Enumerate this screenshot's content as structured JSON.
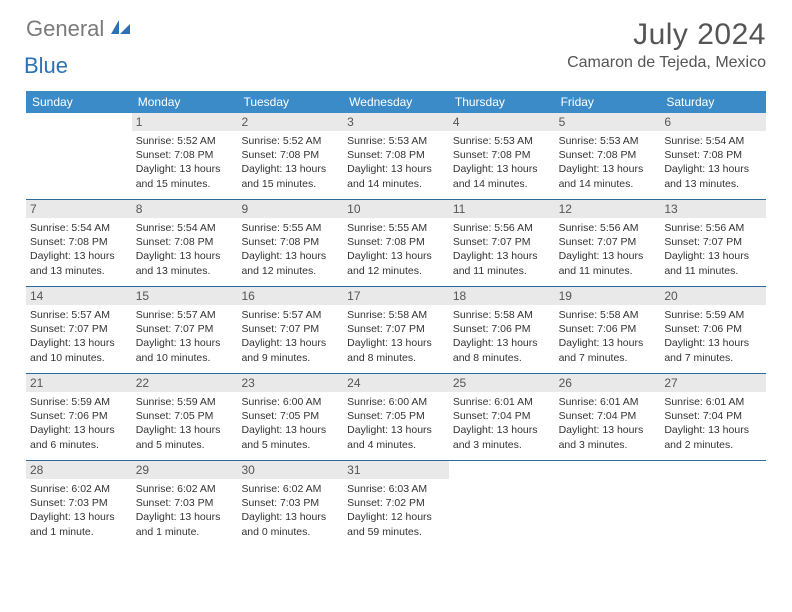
{
  "logo": {
    "general": "General",
    "blue": "Blue"
  },
  "title": "July 2024",
  "location": "Camaron de Tejeda, Mexico",
  "colors": {
    "header_bg": "#3b8bc8",
    "header_text": "#ffffff",
    "daynum_bg": "#e9e9e9",
    "daynum_text": "#555555",
    "divider": "#2a6a9e",
    "body_text": "#333333",
    "title_text": "#555555",
    "logo_gray": "#7a7a7a",
    "logo_blue": "#2a72b5"
  },
  "day_names": [
    "Sunday",
    "Monday",
    "Tuesday",
    "Wednesday",
    "Thursday",
    "Friday",
    "Saturday"
  ],
  "weeks": [
    [
      null,
      {
        "n": "1",
        "sr": "5:52 AM",
        "ss": "7:08 PM",
        "dl": "13 hours and 15 minutes."
      },
      {
        "n": "2",
        "sr": "5:52 AM",
        "ss": "7:08 PM",
        "dl": "13 hours and 15 minutes."
      },
      {
        "n": "3",
        "sr": "5:53 AM",
        "ss": "7:08 PM",
        "dl": "13 hours and 14 minutes."
      },
      {
        "n": "4",
        "sr": "5:53 AM",
        "ss": "7:08 PM",
        "dl": "13 hours and 14 minutes."
      },
      {
        "n": "5",
        "sr": "5:53 AM",
        "ss": "7:08 PM",
        "dl": "13 hours and 14 minutes."
      },
      {
        "n": "6",
        "sr": "5:54 AM",
        "ss": "7:08 PM",
        "dl": "13 hours and 13 minutes."
      }
    ],
    [
      {
        "n": "7",
        "sr": "5:54 AM",
        "ss": "7:08 PM",
        "dl": "13 hours and 13 minutes."
      },
      {
        "n": "8",
        "sr": "5:54 AM",
        "ss": "7:08 PM",
        "dl": "13 hours and 13 minutes."
      },
      {
        "n": "9",
        "sr": "5:55 AM",
        "ss": "7:08 PM",
        "dl": "13 hours and 12 minutes."
      },
      {
        "n": "10",
        "sr": "5:55 AM",
        "ss": "7:08 PM",
        "dl": "13 hours and 12 minutes."
      },
      {
        "n": "11",
        "sr": "5:56 AM",
        "ss": "7:07 PM",
        "dl": "13 hours and 11 minutes."
      },
      {
        "n": "12",
        "sr": "5:56 AM",
        "ss": "7:07 PM",
        "dl": "13 hours and 11 minutes."
      },
      {
        "n": "13",
        "sr": "5:56 AM",
        "ss": "7:07 PM",
        "dl": "13 hours and 11 minutes."
      }
    ],
    [
      {
        "n": "14",
        "sr": "5:57 AM",
        "ss": "7:07 PM",
        "dl": "13 hours and 10 minutes."
      },
      {
        "n": "15",
        "sr": "5:57 AM",
        "ss": "7:07 PM",
        "dl": "13 hours and 10 minutes."
      },
      {
        "n": "16",
        "sr": "5:57 AM",
        "ss": "7:07 PM",
        "dl": "13 hours and 9 minutes."
      },
      {
        "n": "17",
        "sr": "5:58 AM",
        "ss": "7:07 PM",
        "dl": "13 hours and 8 minutes."
      },
      {
        "n": "18",
        "sr": "5:58 AM",
        "ss": "7:06 PM",
        "dl": "13 hours and 8 minutes."
      },
      {
        "n": "19",
        "sr": "5:58 AM",
        "ss": "7:06 PM",
        "dl": "13 hours and 7 minutes."
      },
      {
        "n": "20",
        "sr": "5:59 AM",
        "ss": "7:06 PM",
        "dl": "13 hours and 7 minutes."
      }
    ],
    [
      {
        "n": "21",
        "sr": "5:59 AM",
        "ss": "7:06 PM",
        "dl": "13 hours and 6 minutes."
      },
      {
        "n": "22",
        "sr": "5:59 AM",
        "ss": "7:05 PM",
        "dl": "13 hours and 5 minutes."
      },
      {
        "n": "23",
        "sr": "6:00 AM",
        "ss": "7:05 PM",
        "dl": "13 hours and 5 minutes."
      },
      {
        "n": "24",
        "sr": "6:00 AM",
        "ss": "7:05 PM",
        "dl": "13 hours and 4 minutes."
      },
      {
        "n": "25",
        "sr": "6:01 AM",
        "ss": "7:04 PM",
        "dl": "13 hours and 3 minutes."
      },
      {
        "n": "26",
        "sr": "6:01 AM",
        "ss": "7:04 PM",
        "dl": "13 hours and 3 minutes."
      },
      {
        "n": "27",
        "sr": "6:01 AM",
        "ss": "7:04 PM",
        "dl": "13 hours and 2 minutes."
      }
    ],
    [
      {
        "n": "28",
        "sr": "6:02 AM",
        "ss": "7:03 PM",
        "dl": "13 hours and 1 minute."
      },
      {
        "n": "29",
        "sr": "6:02 AM",
        "ss": "7:03 PM",
        "dl": "13 hours and 1 minute."
      },
      {
        "n": "30",
        "sr": "6:02 AM",
        "ss": "7:03 PM",
        "dl": "13 hours and 0 minutes."
      },
      {
        "n": "31",
        "sr": "6:03 AM",
        "ss": "7:02 PM",
        "dl": "12 hours and 59 minutes."
      },
      null,
      null,
      null
    ]
  ],
  "labels": {
    "sunrise": "Sunrise:",
    "sunset": "Sunset:",
    "daylight": "Daylight:"
  }
}
